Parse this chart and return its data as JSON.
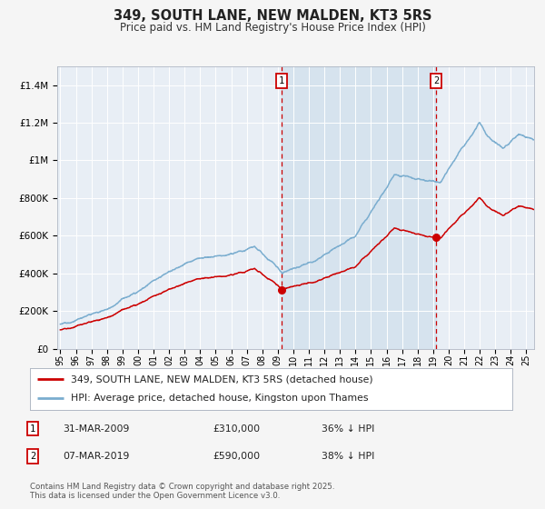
{
  "title": "349, SOUTH LANE, NEW MALDEN, KT3 5RS",
  "subtitle": "Price paid vs. HM Land Registry's House Price Index (HPI)",
  "background_color": "#f5f5f5",
  "plot_bg_color": "#e8eef5",
  "line1_color": "#cc0000",
  "line2_color": "#7aadcf",
  "marker_color": "#cc0000",
  "vline_color": "#cc0000",
  "legend_label1": "349, SOUTH LANE, NEW MALDEN, KT3 5RS (detached house)",
  "legend_label2": "HPI: Average price, detached house, Kingston upon Thames",
  "event1_date": "31-MAR-2009",
  "event1_price": "£310,000",
  "event1_note": "36% ↓ HPI",
  "event1_year": 2009.25,
  "event2_date": "07-MAR-2019",
  "event2_price": "£590,000",
  "event2_note": "38% ↓ HPI",
  "event2_year": 2019.18,
  "ylim": [
    0,
    1500000
  ],
  "xlim_start": 1994.8,
  "xlim_end": 2025.5,
  "yticks": [
    0,
    200000,
    400000,
    600000,
    800000,
    1000000,
    1200000,
    1400000
  ],
  "ytick_labels": [
    "£0",
    "£200K",
    "£400K",
    "£600K",
    "£800K",
    "£1M",
    "£1.2M",
    "£1.4M"
  ],
  "xtick_years": [
    1995,
    1996,
    1997,
    1998,
    1999,
    2000,
    2001,
    2002,
    2003,
    2004,
    2005,
    2006,
    2007,
    2008,
    2009,
    2010,
    2011,
    2012,
    2013,
    2014,
    2015,
    2016,
    2017,
    2018,
    2019,
    2020,
    2021,
    2022,
    2023,
    2024,
    2025
  ],
  "footnote": "Contains HM Land Registry data © Crown copyright and database right 2025.\nThis data is licensed under the Open Government Licence v3.0.",
  "event1_marker_val": 310000,
  "event2_marker_val": 590000
}
